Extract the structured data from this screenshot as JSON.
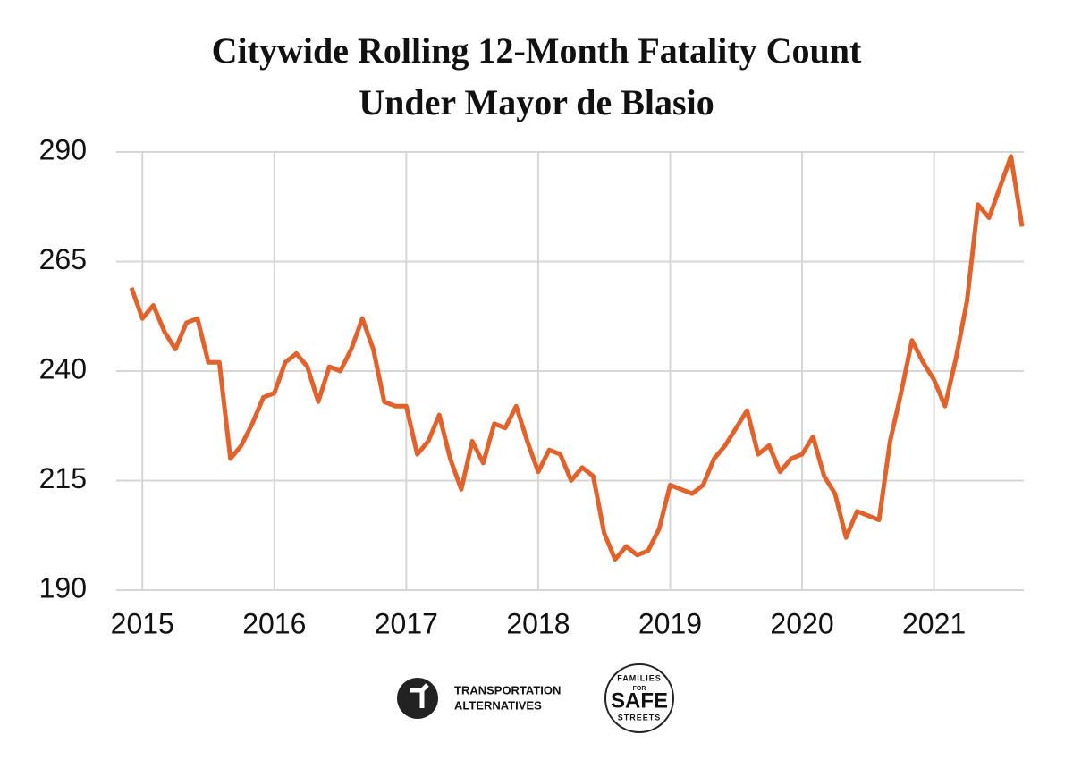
{
  "chart_data": {
    "type": "line",
    "title": "Citywide Rolling 12-Month Fatality Count Under Mayor de Blasio",
    "x": [
      2014.917,
      2015.0,
      2015.083,
      2015.167,
      2015.25,
      2015.333,
      2015.417,
      2015.5,
      2015.583,
      2015.667,
      2015.75,
      2015.833,
      2015.917,
      2016.0,
      2016.083,
      2016.167,
      2016.25,
      2016.333,
      2016.417,
      2016.5,
      2016.583,
      2016.667,
      2016.75,
      2016.833,
      2016.917,
      2017.0,
      2017.083,
      2017.167,
      2017.25,
      2017.333,
      2017.417,
      2017.5,
      2017.583,
      2017.667,
      2017.75,
      2017.833,
      2017.917,
      2018.0,
      2018.083,
      2018.167,
      2018.25,
      2018.333,
      2018.417,
      2018.5,
      2018.583,
      2018.667,
      2018.75,
      2018.833,
      2018.917,
      2019.0,
      2019.083,
      2019.167,
      2019.25,
      2019.333,
      2019.417,
      2019.5,
      2019.583,
      2019.667,
      2019.75,
      2019.833,
      2019.917,
      2020.0,
      2020.083,
      2020.167,
      2020.25,
      2020.333,
      2020.417,
      2020.5,
      2020.583,
      2020.667,
      2020.75,
      2020.833,
      2020.917,
      2021.0,
      2021.083,
      2021.167,
      2021.25,
      2021.333,
      2021.417,
      2021.5,
      2021.583,
      2021.667
    ],
    "series": [
      {
        "color": "#e1622b",
        "values": [
          259,
          252,
          255,
          249,
          245,
          251,
          252,
          242,
          242,
          220,
          223,
          228,
          234,
          235,
          242,
          244,
          241,
          233,
          241,
          240,
          245,
          252,
          245,
          233,
          232,
          232,
          221,
          224,
          230,
          220,
          213,
          224,
          219,
          228,
          227,
          232,
          224,
          217,
          222,
          221,
          215,
          218,
          216,
          203,
          197,
          200,
          198,
          199,
          204,
          214,
          213,
          212,
          214,
          220,
          223,
          227,
          231,
          221,
          223,
          217,
          220,
          221,
          225,
          216,
          212,
          202,
          208,
          207,
          206,
          224,
          235,
          247,
          242,
          238,
          232,
          243,
          256,
          278,
          275,
          282,
          289,
          273
        ]
      }
    ],
    "xlim": [
      2014.917,
      2021.667
    ],
    "xticks": [
      2015,
      2016,
      2017,
      2018,
      2019,
      2020,
      2021
    ],
    "ylim": [
      190,
      290
    ],
    "yticks": [
      190,
      215,
      240,
      265,
      290
    ],
    "grid": true
  },
  "footer": {
    "ta": [
      "TRANSPORTATION",
      "ALTERNATIVES"
    ],
    "fss": {
      "top": "FAMILIES",
      "middle": "FOR",
      "main": "SAFE",
      "bottom": "STREETS"
    }
  }
}
